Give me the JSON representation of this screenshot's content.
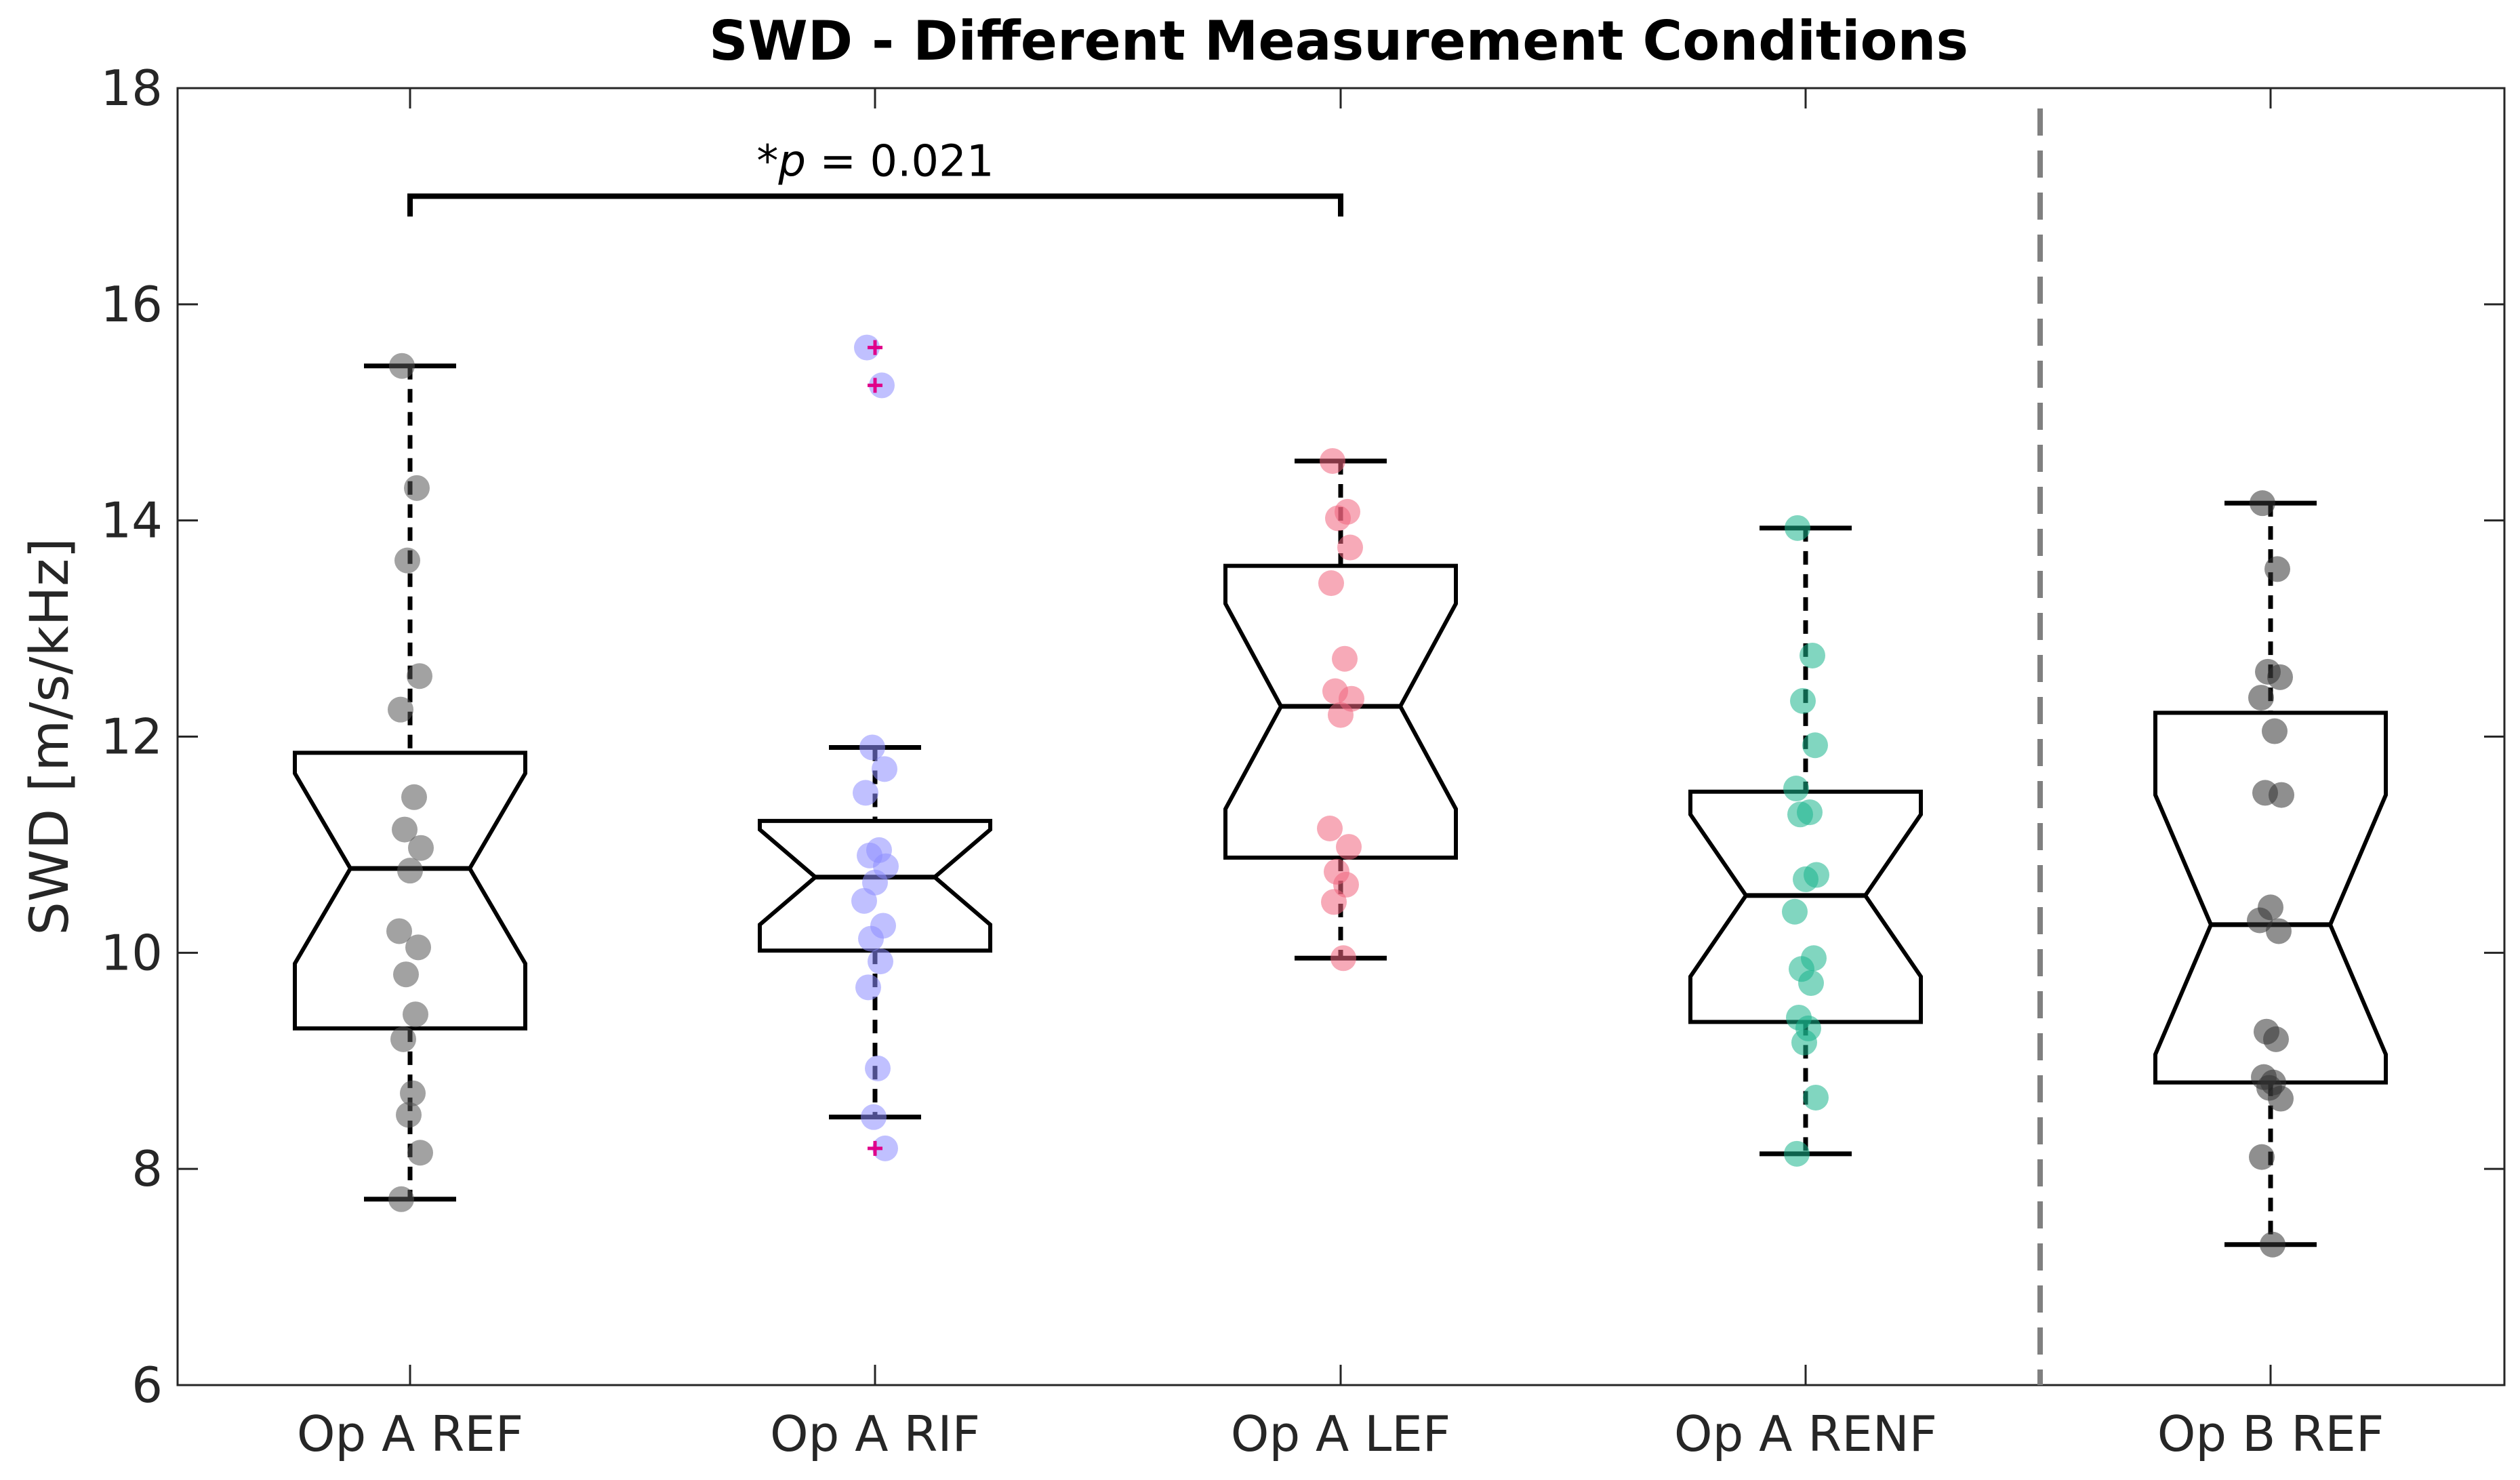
{
  "chart_data": {
    "type": "boxplot",
    "title": "SWD - Different Measurement Conditions",
    "ylabel": "SWD [m/s/kHz]",
    "xlabel": "",
    "ylim": [
      6,
      18
    ],
    "yticks": [
      6,
      8,
      10,
      12,
      14,
      16,
      18
    ],
    "categories": [
      "Op A REF",
      "Op A RIF",
      "Op A LEF",
      "Op A RENF",
      "Op B REF"
    ],
    "group_separator_after_index": 3,
    "annotation": {
      "text_prefix": "*",
      "text_italic": "p",
      "text_suffix": " = 0.021",
      "between": [
        0,
        2
      ],
      "bracket_y": 17.0
    },
    "series": [
      {
        "name": "Op A REF",
        "color": "#555555",
        "box": {
          "whisker_low": 7.72,
          "q1": 9.3,
          "median": 10.78,
          "q3": 11.85,
          "whisker_high": 15.43,
          "notch_low": 9.9,
          "notch_high": 11.66
        },
        "outliers": [],
        "points": [
          15.43,
          14.3,
          13.63,
          12.56,
          12.25,
          11.44,
          11.14,
          10.97,
          10.76,
          10.2,
          10.05,
          9.8,
          9.43,
          9.2,
          8.7,
          8.5,
          8.15,
          7.72
        ]
      },
      {
        "name": "Op A RIF",
        "color": "#8c8cff",
        "box": {
          "whisker_low": 8.48,
          "q1": 10.02,
          "median": 10.7,
          "q3": 11.22,
          "whisker_high": 11.9,
          "notch_low": 10.26,
          "notch_high": 11.14
        },
        "outliers": [
          15.6,
          15.25,
          8.19
        ],
        "points": [
          15.6,
          15.25,
          11.9,
          11.7,
          11.48,
          10.95,
          10.9,
          10.8,
          10.65,
          10.48,
          10.25,
          10.13,
          9.92,
          9.68,
          8.93,
          8.48,
          8.19
        ]
      },
      {
        "name": "Op A LEF",
        "color": "#f0647d",
        "box": {
          "whisker_low": 9.95,
          "q1": 10.88,
          "median": 12.28,
          "q3": 13.58,
          "whisker_high": 14.55,
          "notch_low": 11.33,
          "notch_high": 13.23
        },
        "outliers": [],
        "points": [
          14.55,
          14.08,
          14.02,
          13.75,
          13.42,
          12.72,
          12.42,
          12.35,
          12.2,
          11.15,
          10.98,
          10.75,
          10.63,
          10.47,
          9.95
        ]
      },
      {
        "name": "Op A RENF",
        "color": "#1ab48c",
        "box": {
          "whisker_low": 8.14,
          "q1": 9.36,
          "median": 10.53,
          "q3": 11.49,
          "whisker_high": 13.93,
          "notch_low": 9.78,
          "notch_high": 11.28
        },
        "outliers": [],
        "points": [
          13.93,
          12.75,
          12.33,
          11.92,
          11.52,
          11.3,
          11.28,
          10.72,
          10.68,
          10.38,
          9.95,
          9.85,
          9.72,
          9.4,
          9.3,
          9.17,
          8.66,
          8.14
        ]
      },
      {
        "name": "Op B REF",
        "color": "#333333",
        "box": {
          "whisker_low": 7.3,
          "q1": 8.8,
          "median": 10.26,
          "q3": 12.22,
          "whisker_high": 14.16,
          "notch_low": 9.06,
          "notch_high": 11.46
        },
        "outliers": [],
        "points": [
          14.16,
          13.55,
          12.6,
          12.55,
          12.36,
          12.05,
          11.48,
          11.46,
          10.42,
          10.3,
          10.2,
          9.27,
          9.2,
          8.85,
          8.8,
          8.75,
          8.65,
          8.11,
          7.3
        ]
      }
    ]
  }
}
